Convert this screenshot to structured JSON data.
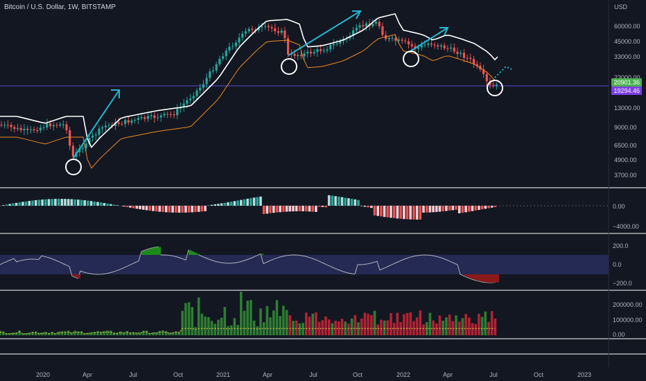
{
  "header": {
    "title": "Bitcoin / U.S. Dollar, 1W, BITSTAMP",
    "currency": "USD"
  },
  "price_axis": {
    "ticks": [
      "60000.00",
      "45000.00",
      "33000.00",
      "23000.00",
      "13000.00",
      "9000.00",
      "6500.00",
      "4900.00",
      "3700.00"
    ]
  },
  "price_tags": {
    "last": "20901.36",
    "ma": "19294.46",
    "last_color": "#4caf50",
    "ma_color": "#7b3fe4"
  },
  "indicator1_axis": {
    "ticks": [
      "0.00",
      "−4000.00"
    ]
  },
  "indicator2_axis": {
    "ticks": [
      "200.0",
      "0.0",
      "−200.0"
    ]
  },
  "indicator3_axis": {
    "ticks": [
      "200000.00",
      "100000.00",
      "0.00"
    ]
  },
  "time_axis": {
    "labels": [
      "2020",
      "Apr",
      "Jul",
      "Oct",
      "2021",
      "Apr",
      "Jul",
      "Oct",
      "2022",
      "Apr",
      "Jul",
      "Oct",
      "2023"
    ]
  },
  "colors": {
    "bg": "#131722",
    "up": "#26a69a",
    "down": "#ef5350",
    "green": "#4caf50",
    "red": "#f23645",
    "arrow": "#22b8cf",
    "grid": "#ffffff",
    "band_white": "#ffffff",
    "band_orange": "#f08a24"
  }
}
